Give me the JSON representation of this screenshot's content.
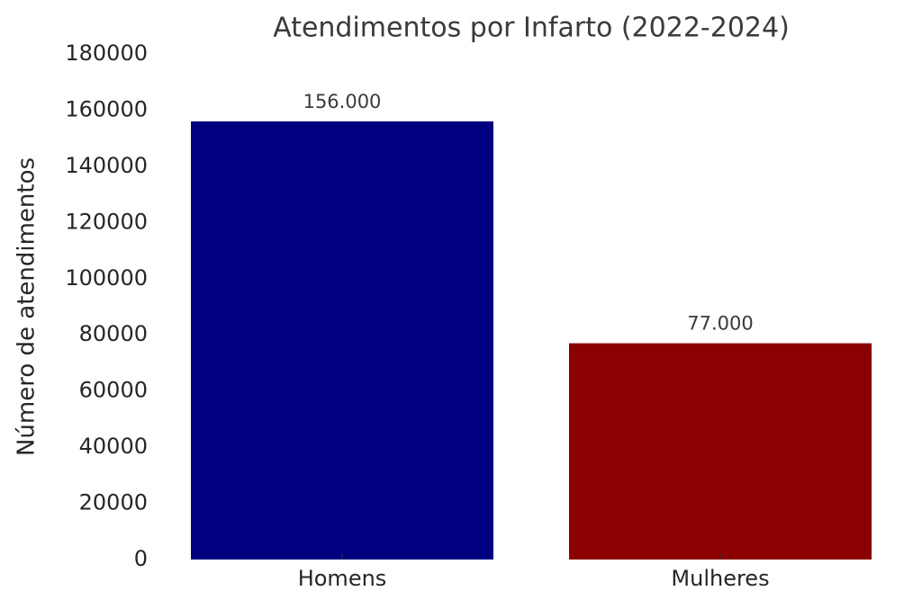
{
  "chart_data": {
    "type": "bar",
    "title": "Atendimentos por Infarto (2022-2024)",
    "y_label": "Número de atendimentos",
    "categories": [
      "Homens",
      "Mulheres"
    ],
    "values": [
      156000,
      77000
    ],
    "value_labels": [
      "156.000",
      "77.000"
    ],
    "colors": [
      "#000080",
      "#8b0000"
    ],
    "ylim": [
      0,
      180000
    ],
    "yticks": [
      0,
      20000,
      40000,
      60000,
      80000,
      100000,
      120000,
      140000,
      160000,
      180000
    ],
    "grid": false
  }
}
